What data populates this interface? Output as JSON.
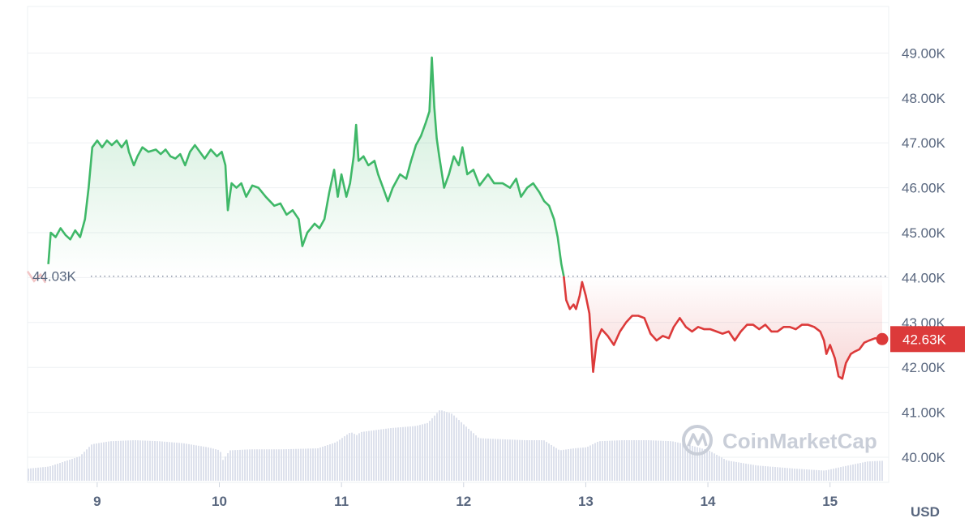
{
  "chart_data": {
    "type": "area",
    "x_unit": "day",
    "y_unit": "USD",
    "ylim": [
      39500,
      49800
    ],
    "xlim": [
      8.43,
      15.48
    ],
    "y_ticks": [
      40000,
      41000,
      42000,
      43000,
      44000,
      45000,
      46000,
      47000,
      48000,
      49000
    ],
    "y_tick_labels": [
      "40.00K",
      "41.00K",
      "42.00K",
      "43.00K",
      "44.00K",
      "45.00K",
      "46.00K",
      "47.00K",
      "48.00K",
      "49.00K"
    ],
    "x_ticks": [
      9,
      10,
      11,
      12,
      13,
      14,
      15
    ],
    "x_tick_labels": [
      "9",
      "10",
      "11",
      "12",
      "13",
      "14",
      "15"
    ],
    "unit_label": "USD",
    "baseline": {
      "value": 44030,
      "label": "44.03K"
    },
    "current": {
      "value": 42630,
      "label": "42.63K"
    },
    "colors": {
      "up": "#3fb868",
      "down": "#dc3a3a",
      "grid": "#eef0f3",
      "volume": "#dde1ec",
      "text": "#58667e"
    },
    "grid": true,
    "watermark": "CoinMarketCap",
    "series": [
      {
        "values": [
          [
            8.6,
            44300
          ],
          [
            8.62,
            45000
          ],
          [
            8.66,
            44900
          ],
          [
            8.7,
            45100
          ],
          [
            8.74,
            44950
          ],
          [
            8.78,
            44850
          ],
          [
            8.82,
            45050
          ],
          [
            8.86,
            44900
          ],
          [
            8.9,
            45300
          ],
          [
            8.93,
            46000
          ],
          [
            8.96,
            46900
          ],
          [
            9.0,
            47050
          ],
          [
            9.04,
            46900
          ],
          [
            9.08,
            47050
          ],
          [
            9.12,
            46950
          ],
          [
            9.16,
            47050
          ],
          [
            9.2,
            46900
          ],
          [
            9.24,
            47050
          ],
          [
            9.26,
            46800
          ],
          [
            9.3,
            46500
          ],
          [
            9.33,
            46700
          ],
          [
            9.37,
            46900
          ],
          [
            9.42,
            46800
          ],
          [
            9.48,
            46850
          ],
          [
            9.52,
            46750
          ],
          [
            9.56,
            46850
          ],
          [
            9.6,
            46700
          ],
          [
            9.64,
            46650
          ],
          [
            9.68,
            46750
          ],
          [
            9.72,
            46500
          ],
          [
            9.76,
            46800
          ],
          [
            9.8,
            46950
          ],
          [
            9.84,
            46800
          ],
          [
            9.88,
            46650
          ],
          [
            9.93,
            46850
          ],
          [
            9.98,
            46700
          ],
          [
            10.02,
            46800
          ],
          [
            10.05,
            46500
          ],
          [
            10.07,
            45500
          ],
          [
            10.1,
            46100
          ],
          [
            10.14,
            46000
          ],
          [
            10.18,
            46100
          ],
          [
            10.22,
            45800
          ],
          [
            10.27,
            46050
          ],
          [
            10.32,
            46000
          ],
          [
            10.38,
            45800
          ],
          [
            10.45,
            45600
          ],
          [
            10.5,
            45650
          ],
          [
            10.55,
            45400
          ],
          [
            10.6,
            45500
          ],
          [
            10.65,
            45300
          ],
          [
            10.68,
            44700
          ],
          [
            10.72,
            45000
          ],
          [
            10.78,
            45200
          ],
          [
            10.82,
            45100
          ],
          [
            10.86,
            45300
          ],
          [
            10.9,
            45900
          ],
          [
            10.94,
            46400
          ],
          [
            10.97,
            45800
          ],
          [
            11.0,
            46300
          ],
          [
            11.04,
            45800
          ],
          [
            11.07,
            46100
          ],
          [
            11.1,
            46700
          ],
          [
            11.12,
            47400
          ],
          [
            11.14,
            46600
          ],
          [
            11.18,
            46700
          ],
          [
            11.22,
            46500
          ],
          [
            11.27,
            46600
          ],
          [
            11.3,
            46300
          ],
          [
            11.34,
            46000
          ],
          [
            11.38,
            45700
          ],
          [
            11.42,
            46000
          ],
          [
            11.48,
            46300
          ],
          [
            11.53,
            46200
          ],
          [
            11.57,
            46600
          ],
          [
            11.61,
            46950
          ],
          [
            11.65,
            47150
          ],
          [
            11.69,
            47450
          ],
          [
            11.72,
            47700
          ],
          [
            11.74,
            48900
          ],
          [
            11.76,
            47800
          ],
          [
            11.78,
            47100
          ],
          [
            11.8,
            46700
          ],
          [
            11.84,
            46000
          ],
          [
            11.88,
            46300
          ],
          [
            11.92,
            46700
          ],
          [
            11.96,
            46500
          ],
          [
            11.99,
            46900
          ],
          [
            12.03,
            46300
          ],
          [
            12.08,
            46400
          ],
          [
            12.13,
            46050
          ],
          [
            12.2,
            46300
          ],
          [
            12.25,
            46100
          ],
          [
            12.32,
            46100
          ],
          [
            12.38,
            46000
          ],
          [
            12.43,
            46200
          ],
          [
            12.47,
            45800
          ],
          [
            12.52,
            46000
          ],
          [
            12.57,
            46100
          ],
          [
            12.62,
            45900
          ],
          [
            12.66,
            45700
          ],
          [
            12.7,
            45600
          ],
          [
            12.74,
            45300
          ],
          [
            12.77,
            44900
          ],
          [
            12.8,
            44300
          ],
          [
            12.82,
            44030
          ]
        ]
      },
      {
        "values": [
          [
            12.82,
            44030
          ],
          [
            12.84,
            43500
          ],
          [
            12.87,
            43300
          ],
          [
            12.9,
            43400
          ],
          [
            12.92,
            43300
          ],
          [
            12.95,
            43600
          ],
          [
            12.97,
            43900
          ],
          [
            13.0,
            43600
          ],
          [
            13.03,
            43200
          ],
          [
            13.06,
            41900
          ],
          [
            13.09,
            42600
          ],
          [
            13.13,
            42850
          ],
          [
            13.18,
            42700
          ],
          [
            13.23,
            42500
          ],
          [
            13.28,
            42800
          ],
          [
            13.33,
            43000
          ],
          [
            13.38,
            43150
          ],
          [
            13.43,
            43150
          ],
          [
            13.48,
            43100
          ],
          [
            13.53,
            42750
          ],
          [
            13.58,
            42600
          ],
          [
            13.63,
            42700
          ],
          [
            13.68,
            42650
          ],
          [
            13.72,
            42900
          ],
          [
            13.77,
            43100
          ],
          [
            13.82,
            42900
          ],
          [
            13.87,
            42800
          ],
          [
            13.92,
            42900
          ],
          [
            13.97,
            42850
          ],
          [
            14.02,
            42850
          ],
          [
            14.07,
            42800
          ],
          [
            14.12,
            42750
          ],
          [
            14.17,
            42800
          ],
          [
            14.22,
            42600
          ],
          [
            14.27,
            42800
          ],
          [
            14.32,
            42950
          ],
          [
            14.37,
            42950
          ],
          [
            14.42,
            42850
          ],
          [
            14.47,
            42950
          ],
          [
            14.52,
            42800
          ],
          [
            14.57,
            42800
          ],
          [
            14.62,
            42900
          ],
          [
            14.67,
            42900
          ],
          [
            14.72,
            42850
          ],
          [
            14.77,
            42950
          ],
          [
            14.82,
            42950
          ],
          [
            14.87,
            42900
          ],
          [
            14.92,
            42800
          ],
          [
            14.95,
            42600
          ],
          [
            14.97,
            42300
          ],
          [
            15.0,
            42500
          ],
          [
            15.04,
            42200
          ],
          [
            15.07,
            41800
          ],
          [
            15.1,
            41750
          ],
          [
            15.13,
            42100
          ],
          [
            15.17,
            42300
          ],
          [
            15.2,
            42350
          ],
          [
            15.24,
            42400
          ],
          [
            15.28,
            42550
          ],
          [
            15.32,
            42600
          ],
          [
            15.37,
            42650
          ],
          [
            15.41,
            42630
          ]
        ]
      }
    ],
    "volume": {
      "values": [
        [
          8.43,
          0.12
        ],
        [
          8.6,
          0.14
        ],
        [
          8.75,
          0.2
        ],
        [
          8.85,
          0.24
        ],
        [
          8.95,
          0.36
        ],
        [
          9.1,
          0.39
        ],
        [
          9.3,
          0.4
        ],
        [
          9.5,
          0.39
        ],
        [
          9.7,
          0.37
        ],
        [
          9.9,
          0.33
        ],
        [
          10.0,
          0.3
        ],
        [
          10.02,
          0.2
        ],
        [
          10.08,
          0.3
        ],
        [
          10.25,
          0.31
        ],
        [
          10.5,
          0.31
        ],
        [
          10.8,
          0.32
        ],
        [
          10.95,
          0.38
        ],
        [
          11.02,
          0.44
        ],
        [
          11.07,
          0.48
        ],
        [
          11.12,
          0.45
        ],
        [
          11.15,
          0.48
        ],
        [
          11.4,
          0.52
        ],
        [
          11.6,
          0.54
        ],
        [
          11.7,
          0.57
        ],
        [
          11.8,
          0.7
        ],
        [
          11.9,
          0.66
        ],
        [
          12.0,
          0.55
        ],
        [
          12.12,
          0.42
        ],
        [
          12.3,
          0.41
        ],
        [
          12.5,
          0.4
        ],
        [
          12.65,
          0.4
        ],
        [
          12.78,
          0.3
        ],
        [
          12.9,
          0.32
        ],
        [
          13.0,
          0.33
        ],
        [
          13.1,
          0.39
        ],
        [
          13.3,
          0.4
        ],
        [
          13.5,
          0.4
        ],
        [
          13.7,
          0.39
        ],
        [
          13.85,
          0.35
        ],
        [
          14.0,
          0.3
        ],
        [
          14.15,
          0.2
        ],
        [
          14.4,
          0.15
        ],
        [
          14.7,
          0.12
        ],
        [
          14.95,
          0.1
        ],
        [
          15.1,
          0.14
        ],
        [
          15.3,
          0.19
        ],
        [
          15.48,
          0.2
        ]
      ]
    }
  }
}
